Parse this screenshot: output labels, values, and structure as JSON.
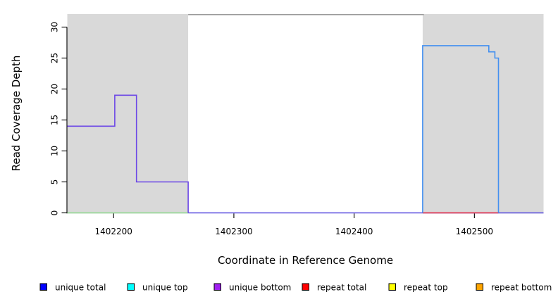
{
  "figure": {
    "background": "#ffffff"
  },
  "chart_data": {
    "type": "line",
    "subtype": "step",
    "title": "",
    "xlabel": "Coordinate in Reference Genome",
    "ylabel": "Read Coverage Depth",
    "xlim": [
      1402161.5,
      1402557.5
    ],
    "ylim": [
      0,
      32.1
    ],
    "xticks": [
      1402200,
      1402300,
      1402400,
      1402500
    ],
    "yticks": [
      0,
      5,
      10,
      15,
      20,
      25,
      30
    ],
    "grid": false,
    "legend_position": "bottom",
    "region_fill": "#d9d9d9",
    "axis_color": "#000000",
    "shaded_regions": [
      {
        "name": "repeat-region-left",
        "x1": 1402161.5,
        "x2": 1402262
      },
      {
        "name": "repeat-region-right",
        "x1": 1402457,
        "x2": 1402557.5
      }
    ],
    "top_rule": {
      "name": "plot-top-rule",
      "x1": 1402262,
      "x2": 1402458,
      "color": "#9a9a9a"
    },
    "lines": [
      {
        "name": "zero-coverage-left-green",
        "color": "#8fd98f",
        "width": 1.5,
        "points": [
          [
            1402161.5,
            0
          ],
          [
            1402262,
            0
          ]
        ]
      },
      {
        "name": "zero-coverage-violet",
        "color": "#5b4fe0",
        "width": 1.5,
        "points": [
          [
            1402262,
            0
          ],
          [
            1402557.5,
            0
          ]
        ]
      },
      {
        "name": "unique-bottom-steps",
        "color": "#6b46e6",
        "width": 1.6,
        "points": [
          [
            1402161.5,
            14
          ],
          [
            1402201,
            14
          ],
          [
            1402201,
            19
          ],
          [
            1402219,
            19
          ],
          [
            1402219,
            5
          ],
          [
            1402262,
            5
          ],
          [
            1402262,
            0
          ]
        ]
      },
      {
        "name": "repeat-total-zero",
        "color": "#f03040",
        "width": 1.4,
        "points": [
          [
            1402457,
            0
          ],
          [
            1402520,
            0
          ]
        ]
      },
      {
        "name": "unique-total-steps",
        "color": "#4390f0",
        "width": 1.6,
        "points": [
          [
            1402457,
            0
          ],
          [
            1402457,
            27
          ],
          [
            1402512,
            27
          ],
          [
            1402512,
            26
          ],
          [
            1402517,
            26
          ],
          [
            1402517,
            25
          ],
          [
            1402520,
            25
          ],
          [
            1402520,
            0
          ]
        ]
      }
    ],
    "legend": [
      {
        "label": "unique total",
        "color": "#0000ff"
      },
      {
        "label": "unique top",
        "color": "#00ffff"
      },
      {
        "label": "unique bottom",
        "color": "#a020f0"
      },
      {
        "label": "repeat total",
        "color": "#ff0000"
      },
      {
        "label": "repeat top",
        "color": "#ffff00"
      },
      {
        "label": "repeat bottom",
        "color": "#ffa500"
      }
    ]
  }
}
